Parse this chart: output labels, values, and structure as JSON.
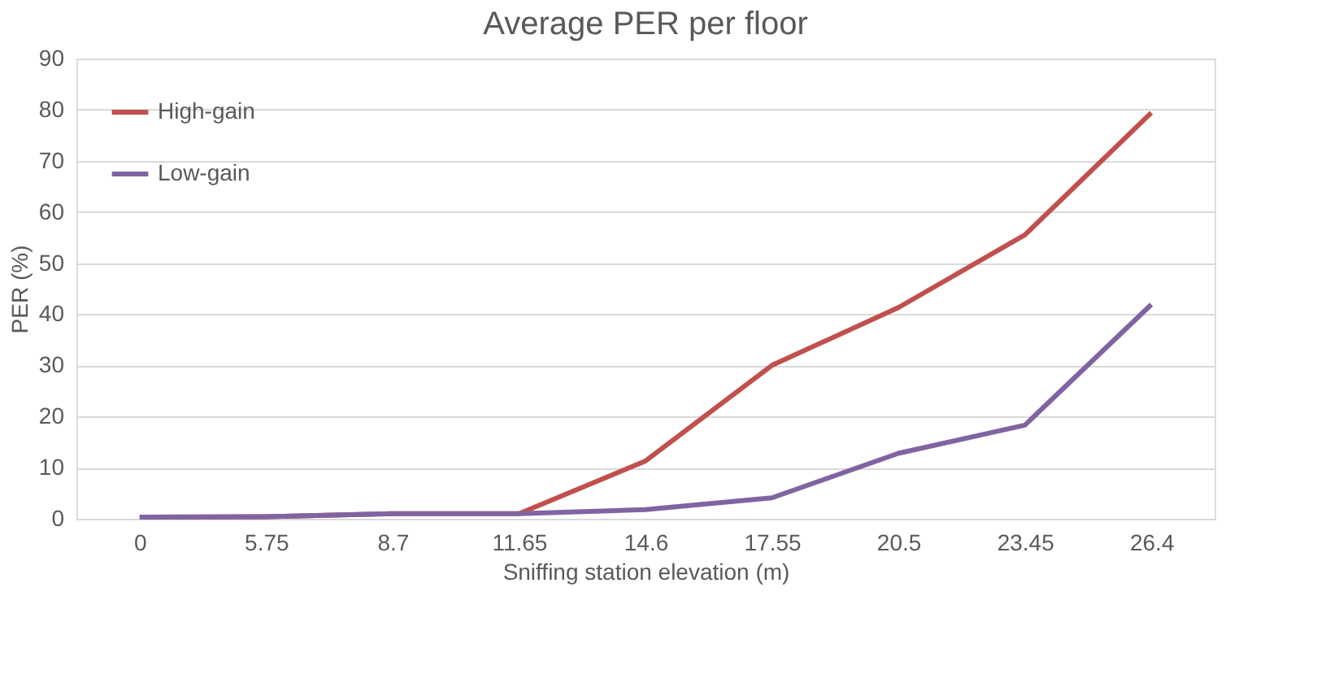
{
  "chart_data": {
    "type": "line",
    "title": "Average PER per floor",
    "xlabel": "Sniffing station elevation (m)",
    "ylabel": "PER (%)",
    "categories": [
      "0",
      "5.75",
      "8.7",
      "11.65",
      "14.6",
      "17.55",
      "20.5",
      "23.45",
      "26.4"
    ],
    "series": [
      {
        "name": "High-gain",
        "color": "#c0504d",
        "values": [
          0.3,
          0.4,
          1,
          1,
          11.3,
          30,
          41.3,
          55.5,
          79.4
        ]
      },
      {
        "name": "Low-gain",
        "color": "#8064a2",
        "values": [
          0.3,
          0.4,
          1,
          1,
          1.8,
          4.1,
          12.8,
          18.3,
          41.9
        ]
      }
    ],
    "ylim": [
      0,
      90
    ],
    "yticks": [
      0,
      10,
      20,
      30,
      40,
      50,
      60,
      70,
      80,
      90
    ],
    "grid": "y",
    "legend": "top left",
    "marker": "none",
    "line_style": "solid"
  }
}
